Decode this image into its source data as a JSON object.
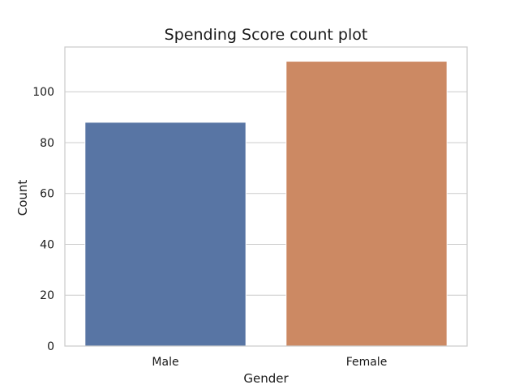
{
  "chart_data": {
    "type": "bar",
    "title": "Spending Score count plot",
    "xlabel": "Gender",
    "ylabel": "Count",
    "categories": [
      "Male",
      "Female"
    ],
    "values": [
      88,
      112
    ],
    "colors": [
      "#5875a4",
      "#cc8963"
    ],
    "ylim": [
      0,
      117.6
    ],
    "yticks": [
      0,
      20,
      40,
      60,
      80,
      100
    ],
    "ytick_labels": [
      "0",
      "20",
      "40",
      "60",
      "80",
      "100"
    ],
    "grid": "horizontal",
    "legend": "none",
    "style": {
      "grid_color": "#cccccc",
      "frame_color": "#cccccc",
      "background": "#ffffff"
    }
  }
}
